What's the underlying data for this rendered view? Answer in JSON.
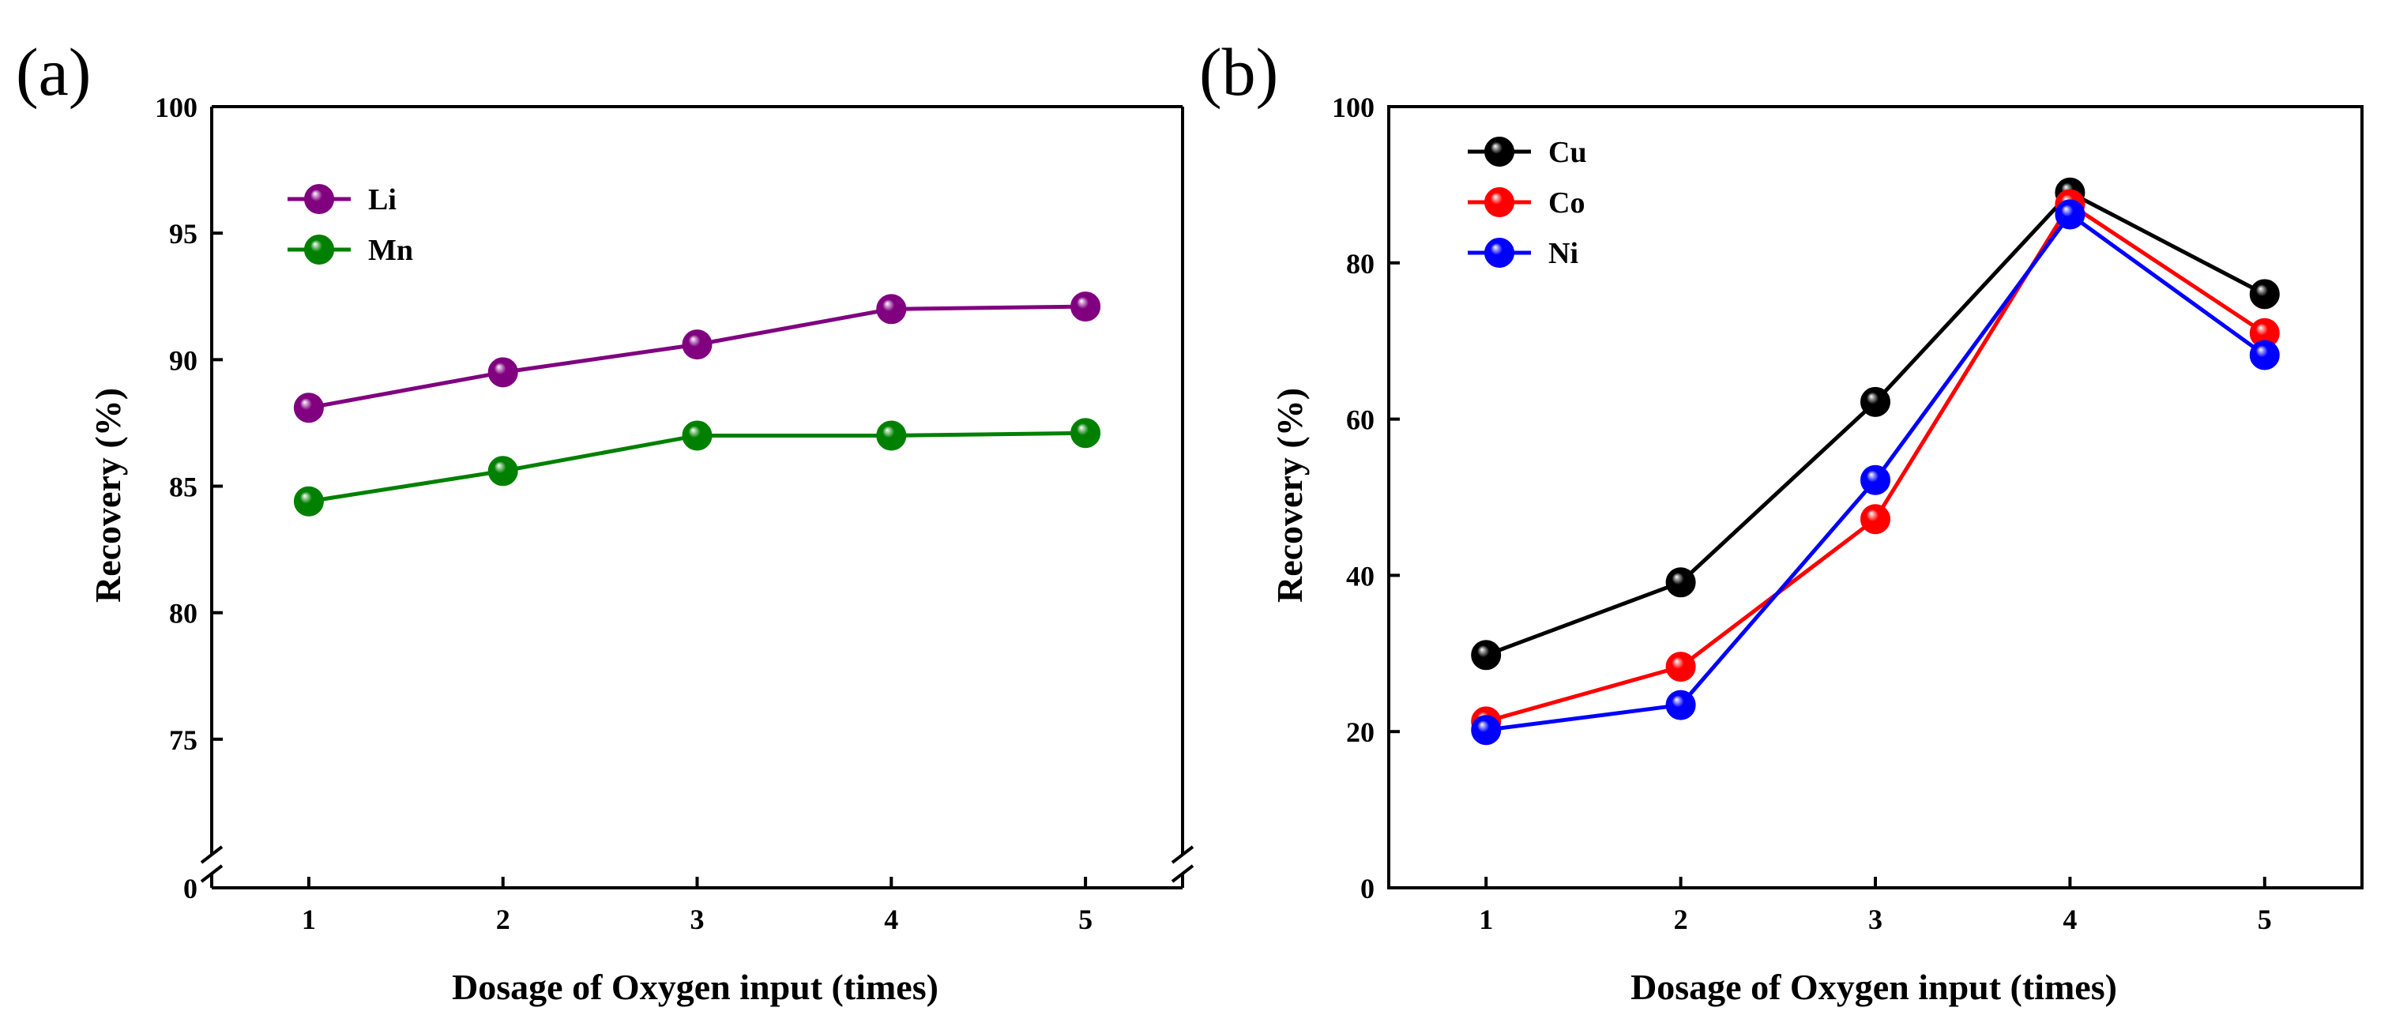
{
  "chart_data": [
    {
      "panel": "(a)",
      "type": "line",
      "xlabel": "Dosage of Oxygen input (times)",
      "ylabel": "Recovery (%)",
      "x": [
        1,
        2,
        3,
        4,
        5
      ],
      "xticks": [
        "1",
        "2",
        "3",
        "4",
        "5"
      ],
      "xlim": [
        0.5,
        5.5
      ],
      "yaxis_break": true,
      "yticks": [
        "0",
        "75",
        "80",
        "85",
        "90",
        "95",
        "100"
      ],
      "ylim": [
        71,
        100
      ],
      "legend_position": "top-left",
      "series": [
        {
          "name": "Li",
          "color": "#800080",
          "values": [
            88.1,
            89.5,
            90.6,
            92.0,
            92.1
          ]
        },
        {
          "name": "Mn",
          "color": "#008000",
          "values": [
            84.4,
            85.6,
            87.0,
            87.0,
            87.1
          ]
        }
      ]
    },
    {
      "panel": "(b)",
      "type": "line",
      "xlabel": "Dosage of Oxygen input (times)",
      "ylabel": "Recovery (%)",
      "x": [
        1,
        2,
        3,
        4,
        5
      ],
      "xticks": [
        "1",
        "2",
        "3",
        "4",
        "5"
      ],
      "xlim": [
        0.5,
        5.5
      ],
      "yticks": [
        "0",
        "20",
        "40",
        "60",
        "80",
        "100"
      ],
      "ylim": [
        0,
        100
      ],
      "legend_position": "top-left",
      "series": [
        {
          "name": "Cu",
          "color": "#000000",
          "values": [
            29.8,
            39.1,
            62.2,
            89.0,
            76.0
          ]
        },
        {
          "name": "Co",
          "color": "#ff0000",
          "values": [
            21.3,
            28.3,
            47.2,
            87.5,
            71.0
          ]
        },
        {
          "name": "Ni",
          "color": "#0000ff",
          "values": [
            20.2,
            23.4,
            52.2,
            86.2,
            68.2
          ]
        }
      ]
    }
  ]
}
